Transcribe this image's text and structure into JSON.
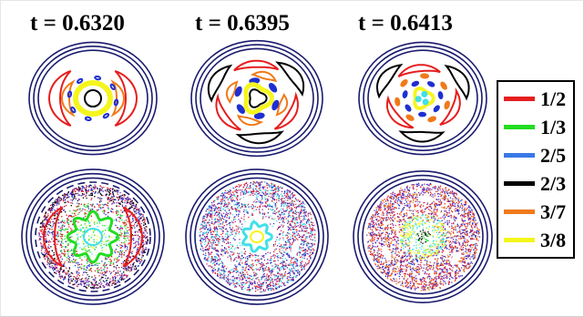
{
  "panels": [
    {
      "time_label": "t = 0.6320"
    },
    {
      "time_label": "t = 0.6395"
    },
    {
      "time_label": "t = 0.6413"
    }
  ],
  "legend": {
    "items": [
      {
        "label": "1/2",
        "color": "#e61e1e"
      },
      {
        "label": "1/3",
        "color": "#22dd22"
      },
      {
        "label": "2/5",
        "color": "#3a78e6"
      },
      {
        "label": "2/3",
        "color": "#000000"
      },
      {
        "label": "3/7",
        "color": "#f07a1a"
      },
      {
        "label": "3/8",
        "color": "#f5f51e"
      }
    ]
  },
  "colors": {
    "boundary": "#1a1a6e",
    "chaos_magenta": "#c0307a",
    "chaos_purple": "#6a2fa0",
    "island_blue": "#1f2fd0",
    "cyan": "#40e0e8"
  }
}
